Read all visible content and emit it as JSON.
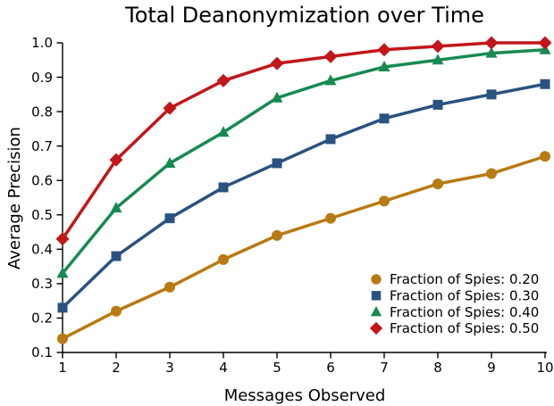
{
  "chart_data": {
    "type": "line",
    "title": "Total Deanonymization over Time",
    "xlabel": "Messages Observed",
    "ylabel": "Average Precision",
    "x": [
      1,
      2,
      3,
      4,
      5,
      6,
      7,
      8,
      9,
      10
    ],
    "xlim": [
      1,
      10
    ],
    "ylim": [
      0.1,
      1.0
    ],
    "xtick_labels": [
      "1",
      "2",
      "3",
      "4",
      "5",
      "6",
      "7",
      "8",
      "9",
      "10"
    ],
    "ytick_labels": [
      "0.1",
      "0.2",
      "0.3",
      "0.4",
      "0.5",
      "0.6",
      "0.7",
      "0.8",
      "0.9",
      "1.0"
    ],
    "grid": false,
    "legend_position": "lower right",
    "axis_color": "#000000",
    "background_color": "#ffffff",
    "series": [
      {
        "name": "Fraction of Spies: 0.20",
        "marker": "circle",
        "color": "#b87a12",
        "values": [
          0.14,
          0.22,
          0.29,
          0.37,
          0.44,
          0.49,
          0.54,
          0.59,
          0.62,
          0.67
        ]
      },
      {
        "name": "Fraction of Spies: 0.30",
        "marker": "square",
        "color": "#2a5280",
        "values": [
          0.23,
          0.38,
          0.49,
          0.58,
          0.65,
          0.72,
          0.78,
          0.82,
          0.85,
          0.88
        ]
      },
      {
        "name": "Fraction of Spies: 0.40",
        "marker": "triangle",
        "color": "#178a52",
        "values": [
          0.33,
          0.52,
          0.65,
          0.74,
          0.84,
          0.89,
          0.93,
          0.95,
          0.97,
          0.98
        ]
      },
      {
        "name": "Fraction of Spies: 0.50",
        "marker": "diamond",
        "color": "#c2161b",
        "values": [
          0.43,
          0.66,
          0.81,
          0.89,
          0.94,
          0.96,
          0.98,
          0.99,
          1.0,
          1.0
        ]
      }
    ]
  }
}
